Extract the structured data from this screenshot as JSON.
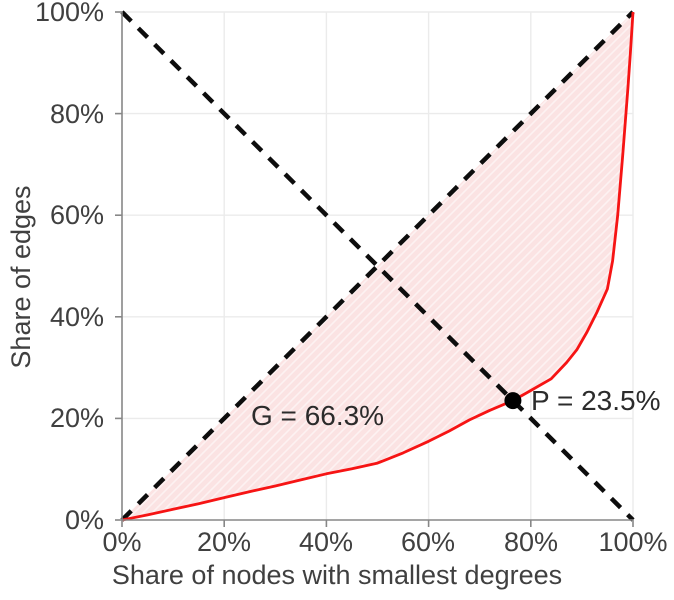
{
  "figure": {
    "background": "#ffffff"
  },
  "chart_data": {
    "type": "area",
    "title": "",
    "xlabel": "Share of nodes with smallest degrees",
    "ylabel": "Share of edges",
    "xlim": [
      0,
      100
    ],
    "ylim": [
      0,
      100
    ],
    "grid": true,
    "x_tick_values": [
      0,
      20,
      40,
      60,
      80,
      100
    ],
    "y_tick_values": [
      0,
      20,
      40,
      60,
      80,
      100
    ],
    "x_tick_labels": [
      "0%",
      "20%",
      "40%",
      "60%",
      "80%",
      "100%"
    ],
    "y_tick_labels": [
      "0%",
      "20%",
      "40%",
      "60%",
      "80%",
      "100%"
    ],
    "series": [
      {
        "name": "lorenz_curve",
        "type": "line",
        "style": "solid",
        "color": "#f61414",
        "points": [
          [
            0,
            0
          ],
          [
            5,
            1.0
          ],
          [
            10,
            2.1
          ],
          [
            15,
            3.2
          ],
          [
            20,
            4.4
          ],
          [
            25,
            5.6
          ],
          [
            30,
            6.7
          ],
          [
            35,
            7.9
          ],
          [
            40,
            9.1
          ],
          [
            45,
            10.1
          ],
          [
            50,
            11.2
          ],
          [
            55,
            13.2
          ],
          [
            60,
            15.5
          ],
          [
            64,
            17.5
          ],
          [
            68,
            19.7
          ],
          [
            72,
            21.6
          ],
          [
            76.5,
            23.5
          ],
          [
            80,
            25.5
          ],
          [
            84,
            27.8
          ],
          [
            87,
            31.0
          ],
          [
            89,
            33.5
          ],
          [
            91,
            37.0
          ],
          [
            93,
            41.0
          ],
          [
            95,
            45.5
          ],
          [
            96,
            51.0
          ],
          [
            97,
            60.0
          ],
          [
            98,
            72.0
          ],
          [
            99,
            85.0
          ],
          [
            99.5,
            92.0
          ],
          [
            100,
            100
          ]
        ]
      },
      {
        "name": "equality_diagonal",
        "type": "line",
        "style": "dashed",
        "color": "#0d0d0d",
        "points": [
          [
            0,
            0
          ],
          [
            100,
            100
          ]
        ]
      },
      {
        "name": "anti_diagonal",
        "type": "line",
        "style": "dashed",
        "color": "#0d0d0d",
        "points": [
          [
            0,
            100
          ],
          [
            100,
            0
          ]
        ]
      }
    ],
    "shaded_region": {
      "between": [
        "equality_diagonal",
        "lorenz_curve"
      ],
      "fill": "#fbe3e3",
      "hatch_color": "rgba(255,255,255,0.55)"
    },
    "point_marker": {
      "x": 76.5,
      "y": 23.5,
      "color": "#000000",
      "radius": 8.5
    },
    "annotations": [
      {
        "id": "gini",
        "text": "G = 66.3%",
        "value_percent": 66.3
      },
      {
        "id": "p",
        "text": "P = 23.5%",
        "value_percent": 23.5
      }
    ],
    "colors": {
      "grid": "#ebebeb",
      "axis": "#878787",
      "tick_text": "#404040",
      "annotation_text": "#2b2b2b"
    }
  }
}
